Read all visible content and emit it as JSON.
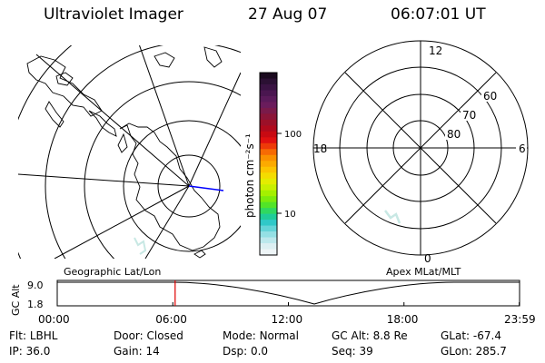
{
  "header": {
    "instrument": "Ultraviolet Imager",
    "date": "27 Aug 07",
    "time": "06:07:01 UT"
  },
  "colorbar": {
    "unit": "photon cm⁻²s⁻¹",
    "tick_labels": [
      "100",
      "10"
    ],
    "colors": [
      "#1a0a1e",
      "#2b1033",
      "#3a1343",
      "#4a1650",
      "#5a1a5a",
      "#6a1c5c",
      "#7a1a4a",
      "#8b1538",
      "#9c1028",
      "#b00a1c",
      "#c80a12",
      "#e01010",
      "#ee3a08",
      "#f66a04",
      "#fa9000",
      "#fcaa00",
      "#fcc400",
      "#f4dc00",
      "#e4ec00",
      "#c8f000",
      "#a4f000",
      "#7ceb0c",
      "#52e428",
      "#30d860",
      "#20cc98",
      "#30c8c8",
      "#64d4d8",
      "#94e0e4",
      "#bce8ec",
      "#dceff2",
      "#eef5f7"
    ]
  },
  "left_panel": {
    "label": "Geographic Lat/Lon"
  },
  "right_panel": {
    "label": "Apex MLat/MLT",
    "mlt_labels": [
      "12",
      "18",
      "6",
      "0"
    ],
    "lat_labels": [
      "60",
      "70",
      "80"
    ]
  },
  "altitude_plot": {
    "ylabel": "GC Alt",
    "y_ticks": [
      "9.0",
      "1.8"
    ],
    "x_ticks": [
      "00:00",
      "06:00",
      "12:00",
      "18:00",
      "23:59"
    ],
    "current_time_hours": 6.12,
    "marker_color": "#dd0000"
  },
  "footer": [
    [
      {
        "k": "Flt:",
        "v": "LBHL"
      },
      {
        "k": "Door:",
        "v": "Closed"
      },
      {
        "k": "Mode:",
        "v": "Normal"
      },
      {
        "k": "GC Alt:",
        "v": "8.8 Re"
      },
      {
        "k": "GLat:",
        "v": "-67.4"
      }
    ],
    [
      {
        "k": "IP:",
        "v": "36.0"
      },
      {
        "k": "Gain:",
        "v": "14"
      },
      {
        "k": "Dsp:",
        "v": "0.0"
      },
      {
        "k": "Seq:",
        "v": "39"
      },
      {
        "k": "GLon:",
        "v": "285.7"
      }
    ]
  ]
}
